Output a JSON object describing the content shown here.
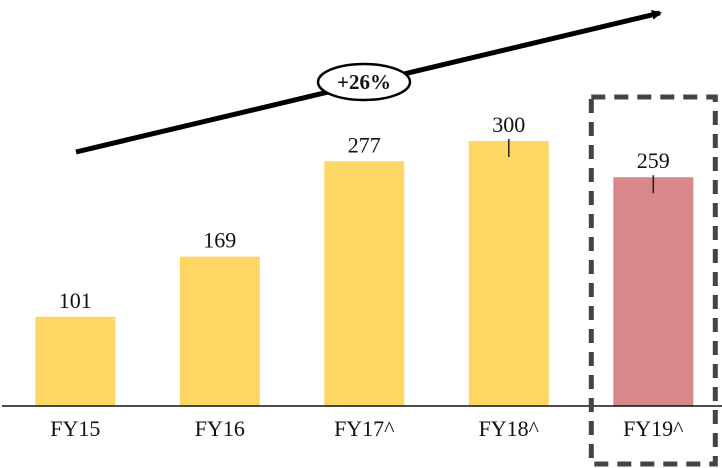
{
  "chart_data": {
    "type": "bar",
    "title": "",
    "xlabel": "",
    "ylabel": "",
    "categories": [
      "FY15",
      "FY16",
      "FY17^",
      "FY18^",
      "FY19^"
    ],
    "values": [
      101,
      169,
      277,
      300,
      259
    ],
    "ylim": [
      0,
      300
    ],
    "grid": false,
    "colors": {
      "default_bar": "#FDD663",
      "highlight_bar": "#D8888A",
      "axis": "#111111",
      "highlight_box": "#444444",
      "trend_arrow": "#000000"
    },
    "highlighted_category": "FY19^",
    "growth_annotation": "+26%"
  }
}
